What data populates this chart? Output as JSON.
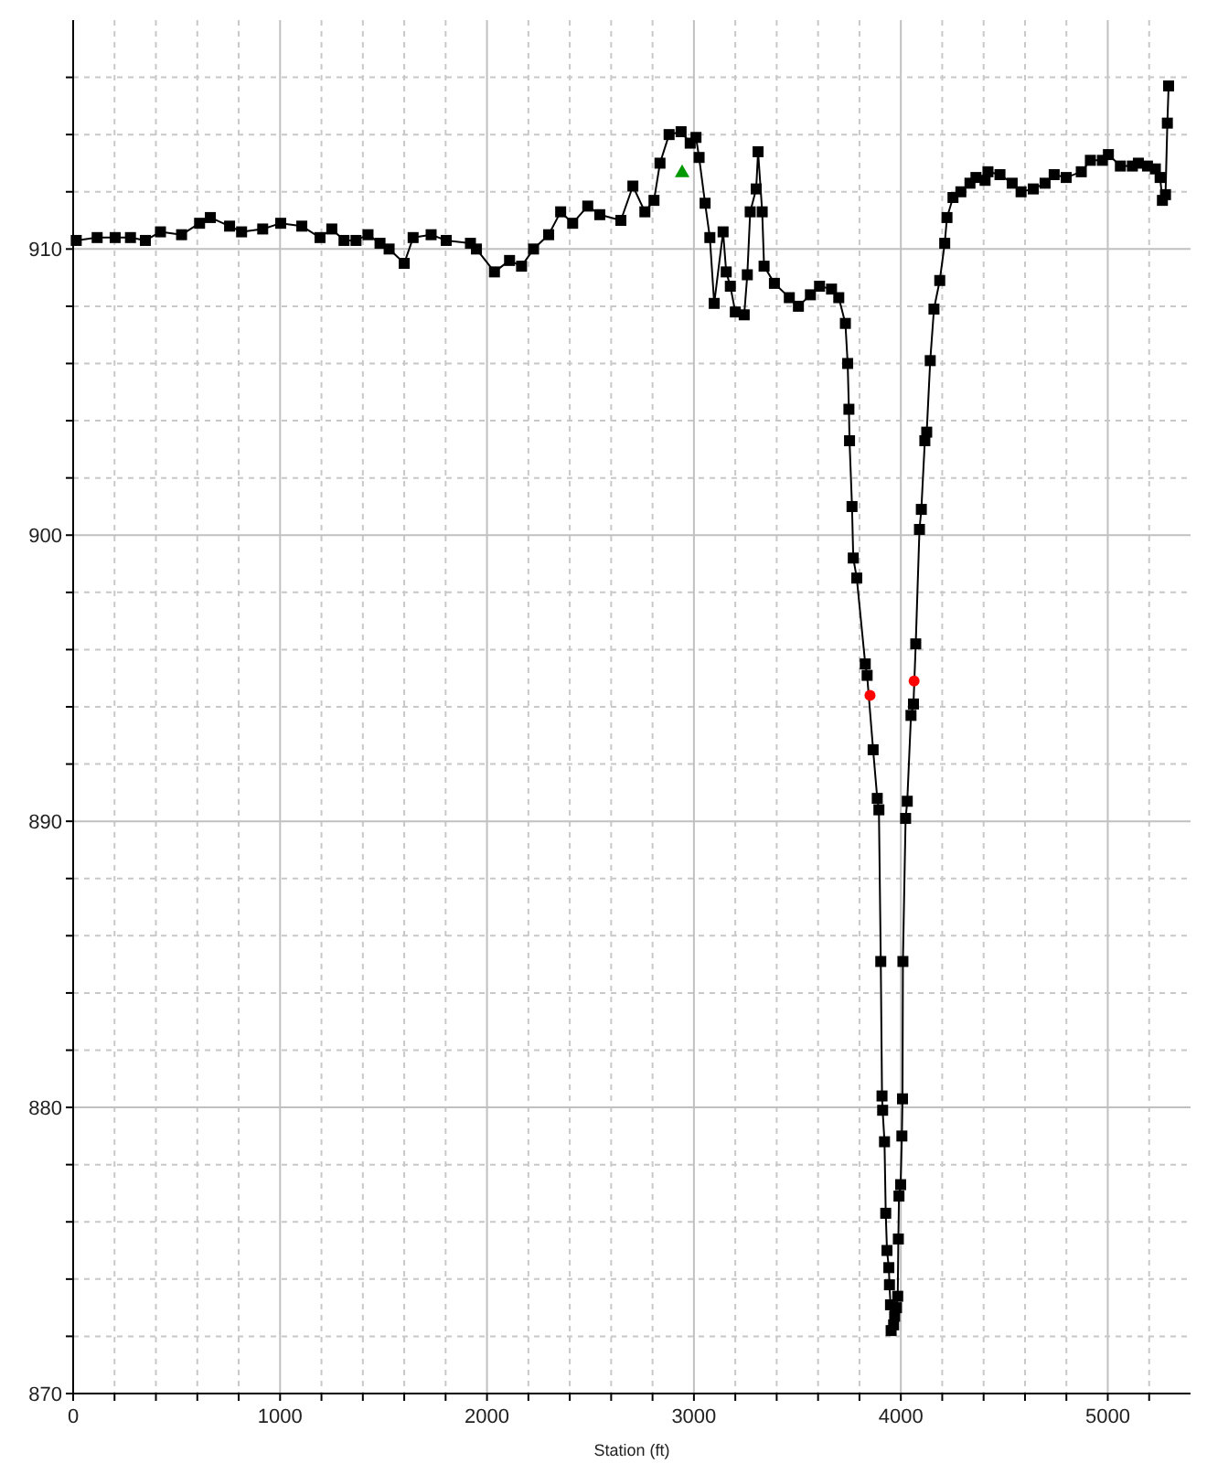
{
  "chart_data": {
    "type": "line",
    "xlabel": "Station (ft)",
    "xlim": [
      0,
      5400
    ],
    "ylim": [
      870,
      918
    ],
    "xticks": [
      0,
      {
        "value": 200,
        "label": null
      },
      {
        "value": 400,
        "label": null
      },
      {
        "value": 600,
        "label": null
      },
      {
        "value": 800,
        "label": null
      },
      1000,
      {
        "value": 1200,
        "label": null
      },
      {
        "value": 1400,
        "label": null
      },
      {
        "value": 1600,
        "label": null
      },
      {
        "value": 1800,
        "label": null
      },
      2000,
      {
        "value": 2200,
        "label": null
      },
      {
        "value": 2400,
        "label": null
      },
      {
        "value": 2600,
        "label": null
      },
      {
        "value": 2800,
        "label": null
      },
      3000,
      {
        "value": 3200,
        "label": null
      },
      {
        "value": 3400,
        "label": null
      },
      {
        "value": 3600,
        "label": null
      },
      {
        "value": 3800,
        "label": null
      },
      4000,
      {
        "value": 4200,
        "label": null
      },
      {
        "value": 4400,
        "label": null
      },
      {
        "value": 4600,
        "label": null
      },
      {
        "value": 4800,
        "label": null
      },
      5000,
      {
        "value": 5200,
        "label": null
      }
    ],
    "yticks": [
      870,
      {
        "value": 872,
        "label": null
      },
      {
        "value": 874,
        "label": null
      },
      {
        "value": 876,
        "label": null
      },
      {
        "value": 878,
        "label": null
      },
      880,
      {
        "value": 882,
        "label": null
      },
      {
        "value": 884,
        "label": null
      },
      {
        "value": 886,
        "label": null
      },
      {
        "value": 888,
        "label": null
      },
      890,
      {
        "value": 892,
        "label": null
      },
      {
        "value": 894,
        "label": null
      },
      {
        "value": 896,
        "label": null
      },
      {
        "value": 898,
        "label": null
      },
      900,
      {
        "value": 902,
        "label": null
      },
      {
        "value": 904,
        "label": null
      },
      {
        "value": 906,
        "label": null
      },
      {
        "value": 908,
        "label": null
      },
      910,
      {
        "value": 912,
        "label": null
      },
      {
        "value": 914,
        "label": null
      },
      {
        "value": 916,
        "label": null
      }
    ],
    "grid": true,
    "series": [
      {
        "color": "#000000",
        "marker": "square",
        "line_style": "solid",
        "x": [
          15,
          116,
          203,
          277,
          349,
          422,
          524,
          611,
          663,
          756,
          814,
          916,
          1003,
          1105,
          1193,
          1250,
          1309,
          1367,
          1425,
          1483,
          1527,
          1600,
          1643,
          1730,
          1803,
          1920,
          1949,
          2036,
          2109,
          2167,
          2225,
          2298,
          2356,
          2414,
          2487,
          2545,
          2647,
          2705,
          2763,
          2807,
          2836,
          2880,
          2938,
          2982,
          3010,
          3025,
          3054,
          3077,
          3098,
          3141,
          3156,
          3176,
          3200,
          3243,
          3258,
          3272,
          3301,
          3310,
          3330,
          3339,
          3389,
          3461,
          3505,
          3563,
          3607,
          3665,
          3700,
          3732,
          3743,
          3749,
          3752,
          3764,
          3770,
          3787,
          3828,
          3837,
          3866,
          3886,
          3894,
          3903,
          3909,
          3912,
          3921,
          3927,
          3933,
          3942,
          3945,
          3950,
          3953,
          3965,
          3970,
          3979,
          3985,
          3988,
          3991,
          3999,
          4005,
          4008,
          4010,
          4023,
          4031,
          4049,
          4061,
          4072,
          4090,
          4099,
          4116,
          4125,
          4142,
          4160,
          4188,
          4212,
          4223,
          4252,
          4290,
          4334,
          4363,
          4407,
          4421,
          4479,
          4538,
          4581,
          4640,
          4697,
          4741,
          4799,
          4872,
          4916,
          4974,
          5003,
          5061,
          5119,
          5148,
          5192,
          5230,
          5253,
          5264,
          5279,
          5288,
          5294
        ],
        "values": [
          910.3,
          910.4,
          910.4,
          910.4,
          910.3,
          910.6,
          910.5,
          910.9,
          911.1,
          910.8,
          910.6,
          910.7,
          910.9,
          910.8,
          910.4,
          910.7,
          910.3,
          910.3,
          910.5,
          910.2,
          910.0,
          909.5,
          910.4,
          910.5,
          910.3,
          910.2,
          910.0,
          909.2,
          909.6,
          909.4,
          910.0,
          910.5,
          911.3,
          910.9,
          911.5,
          911.2,
          911.0,
          912.2,
          911.3,
          911.7,
          913.0,
          914.0,
          914.1,
          913.7,
          913.9,
          913.2,
          911.6,
          910.4,
          908.1,
          910.6,
          909.2,
          908.7,
          907.8,
          907.7,
          909.1,
          911.3,
          912.1,
          913.4,
          911.3,
          909.4,
          908.8,
          908.3,
          908.0,
          908.4,
          908.7,
          908.6,
          908.3,
          907.4,
          906.0,
          904.4,
          903.3,
          901.0,
          899.2,
          898.5,
          895.5,
          895.1,
          892.5,
          890.8,
          890.4,
          885.1,
          880.4,
          879.9,
          878.8,
          876.3,
          875.0,
          874.4,
          873.8,
          873.1,
          872.2,
          872.4,
          872.7,
          873.0,
          873.4,
          875.4,
          876.9,
          877.3,
          879.0,
          880.3,
          885.1,
          890.1,
          890.7,
          893.7,
          894.1,
          896.2,
          900.2,
          900.9,
          903.3,
          903.6,
          906.1,
          907.9,
          908.9,
          910.2,
          911.1,
          911.8,
          912.0,
          912.3,
          912.5,
          912.4,
          912.7,
          912.6,
          912.3,
          912.0,
          912.1,
          912.3,
          912.6,
          912.5,
          912.7,
          913.1,
          913.1,
          913.3,
          912.9,
          912.9,
          913.0,
          912.9,
          912.8,
          912.5,
          911.7,
          911.9,
          914.4,
          915.7
        ]
      },
      {
        "type": "scatter",
        "color": "#ff0000",
        "marker": "circle",
        "x": [
          3851,
          4064
        ],
        "values": [
          894.4,
          894.9
        ]
      },
      {
        "type": "scatter",
        "color": "#009900",
        "marker": "triangle",
        "x": [
          2943
        ],
        "values": [
          912.7
        ]
      }
    ]
  }
}
